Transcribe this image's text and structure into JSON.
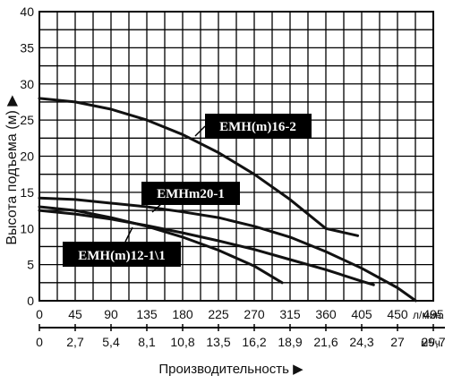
{
  "chart_data": {
    "type": "line",
    "ylabel": "Высота подъема (м) ▶",
    "xlabel": "Производительность ▶",
    "ylim": [
      0,
      40
    ],
    "y_ticks": [
      "0",
      "5",
      "10",
      "15",
      "20",
      "25",
      "30",
      "35",
      "40"
    ],
    "xlim": [
      0,
      495
    ],
    "x_ticks_lmin": [
      "0",
      "45",
      "90",
      "135",
      "180",
      "225",
      "270",
      "315",
      "360",
      "405",
      "450",
      "495"
    ],
    "x_unit_lmin": "л/мин.",
    "x_ticks_m3h": [
      "0",
      "2,7",
      "5,4",
      "8,1",
      "10,8",
      "13,5",
      "16,2",
      "18,9",
      "21,6",
      "24,3",
      "27",
      "29,7"
    ],
    "x_unit_m3h": "м³/ч.",
    "grid": true,
    "series": [
      {
        "name": "EMH(m)16-2",
        "x": [
          0,
          45,
          90,
          135,
          180,
          225,
          270,
          315,
          360,
          400
        ],
        "y": [
          28,
          27.5,
          26.5,
          25,
          23,
          20.5,
          17.5,
          14,
          10,
          9
        ]
      },
      {
        "name": "EMHm20-1",
        "x": [
          0,
          45,
          90,
          135,
          180,
          225,
          270,
          315,
          360,
          405,
          450,
          473
        ],
        "y": [
          14.2,
          14,
          13.5,
          13,
          12.3,
          11.5,
          10.3,
          8.8,
          6.8,
          4.5,
          1.8,
          0
        ]
      },
      {
        "name": "EMH(m)12-1\\1",
        "x": [
          0,
          45,
          90,
          135,
          180,
          225,
          270,
          305
        ],
        "y": [
          13,
          12.5,
          11.5,
          10.3,
          8.8,
          7,
          4.8,
          2.5
        ]
      },
      {
        "name": "",
        "x": [
          0,
          45,
          90,
          135,
          180,
          225,
          270,
          315,
          360,
          405,
          420
        ],
        "y": [
          12.5,
          12,
          11.3,
          10.4,
          9.4,
          8.3,
          7.1,
          5.7,
          4.3,
          2.7,
          2.2
        ]
      }
    ],
    "labels": {
      "emh16": "EMH(m)16-2",
      "emh20": "EMHm20-1",
      "emh12": "EMH(m)12-1\\1"
    }
  }
}
